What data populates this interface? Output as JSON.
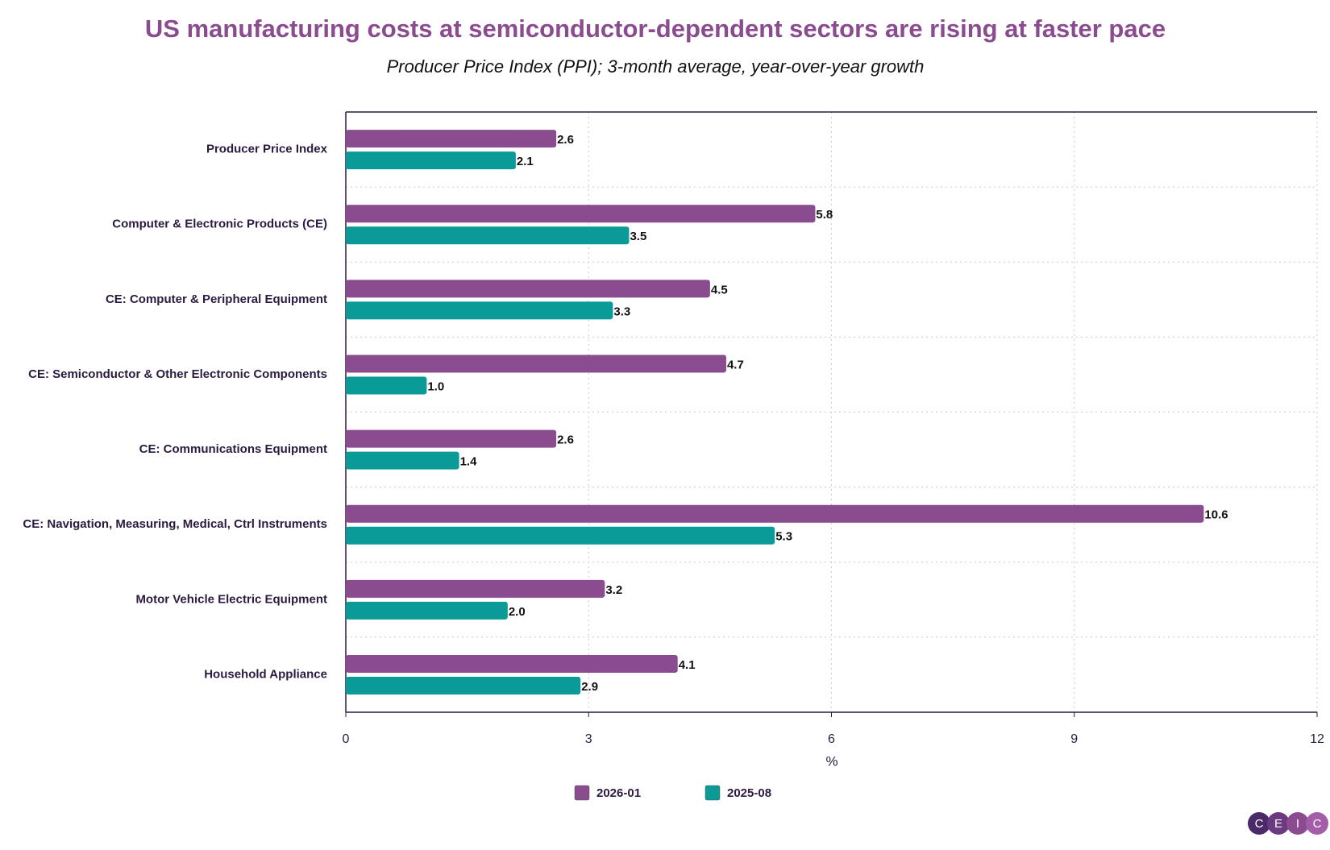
{
  "chart_data": {
    "type": "hbar",
    "title": "US manufacturing costs at semiconductor-dependent sectors are rising at faster pace",
    "subtitle": "Producer Price Index (PPI); 3-month average, year-over-year growth",
    "x_label": "%",
    "categories": [
      "Producer Price Index",
      "Computer & Electronic Products (CE)",
      "CE: Computer & Peripheral Equipment",
      "CE: Semiconductor & Other Electronic Components",
      "CE: Communications Equipment",
      "CE: Navigation, Measuring, Medical, Ctrl Instruments",
      "Motor Vehicle Electric Equipment",
      "Household Appliance"
    ],
    "series": [
      {
        "name": "2026-01",
        "color": "#8a4b8f",
        "values": [
          2.6,
          5.8,
          4.5,
          4.7,
          2.6,
          10.6,
          3.2,
          4.1
        ],
        "value_labels": [
          "2.6",
          "5.8",
          "4.5",
          "4.7",
          "2.6",
          "10.6",
          "3.2",
          "4.1"
        ]
      },
      {
        "name": "2025-08",
        "color": "#0a9a98",
        "values": [
          2.1,
          3.5,
          3.3,
          1.0,
          1.4,
          5.3,
          2.0,
          2.9
        ],
        "value_labels": [
          "2.1",
          "3.5",
          "3.3",
          "1.0",
          "1.4",
          "5.3",
          "2.0",
          "2.9"
        ]
      }
    ],
    "xlim": [
      0,
      12
    ],
    "xticks": [
      0,
      3,
      6,
      9,
      12
    ],
    "grid": true,
    "legend": "bottom",
    "logo": [
      "C",
      "E",
      "I",
      "C"
    ]
  }
}
